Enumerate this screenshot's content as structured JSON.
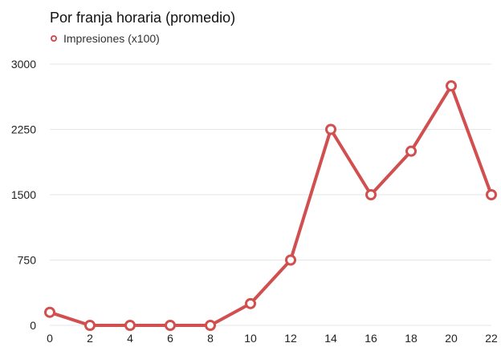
{
  "chart_data": {
    "type": "line",
    "title": "Por franja horaria (promedio)",
    "legend_position": "top-left",
    "grid": true,
    "x": [
      0,
      2,
      4,
      6,
      8,
      10,
      12,
      14,
      16,
      18,
      20,
      22
    ],
    "series": [
      {
        "name": "Impresiones (x100)",
        "color": "#d24f50",
        "values": [
          150,
          0,
          0,
          0,
          0,
          250,
          750,
          2250,
          1500,
          2000,
          2750,
          1500
        ]
      }
    ],
    "xticks": [
      "0",
      "2",
      "4",
      "6",
      "8",
      "10",
      "12",
      "14",
      "16",
      "18",
      "20",
      "22"
    ],
    "yticks": [
      "0",
      "750",
      "1500",
      "2250",
      "3000"
    ],
    "ylim": [
      0,
      3000
    ],
    "xlim": [
      0,
      22
    ]
  }
}
